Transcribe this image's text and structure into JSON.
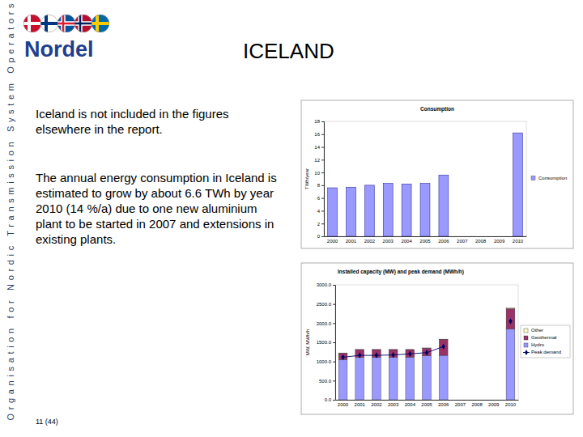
{
  "slide": {
    "side_text": "Organisation for Nordic Transmission System Operators",
    "logo": "Nordel",
    "title": "ICELAND",
    "paragraphs": [
      "Iceland is not included in the figures elsewhere in the report.",
      "The annual energy consumption in Iceland is estimated to grow by about 6.6 TWh by year 2010 (14 %/a) due to one new aluminium plant to be started in 2007 and extensions in existing plants."
    ],
    "page": "11 (44)"
  },
  "chart_data": [
    {
      "type": "bar",
      "title": "Consumption",
      "y_label": "TWh/year",
      "categories": [
        "2000",
        "2001",
        "2002",
        "2003",
        "2004",
        "2005",
        "2006",
        "2007",
        "2008",
        "2009",
        "2010"
      ],
      "series": [
        {
          "name": "Consumption",
          "color": "#9999ff",
          "values": [
            7.6,
            7.7,
            8.0,
            8.3,
            8.2,
            8.3,
            9.6,
            null,
            null,
            null,
            16.2
          ]
        }
      ],
      "ylim": [
        0,
        18
      ],
      "yticks": [
        0,
        2,
        4,
        6,
        8,
        10,
        12,
        14,
        16,
        18
      ],
      "grid": false,
      "legend": "right"
    },
    {
      "type": "bar",
      "stacked": true,
      "title": "Installed capacity (MW) and peak demand (MWh/h)",
      "y_label": "MW, MWh/h",
      "categories": [
        "2000",
        "2001",
        "2002",
        "2003",
        "2004",
        "2005",
        "2006",
        "2007",
        "2008",
        "2009",
        "2010"
      ],
      "series": [
        {
          "name": "Hydro",
          "color": "#9999ff",
          "values": [
            1050,
            1110,
            1110,
            1110,
            1110,
            1150,
            1160,
            null,
            null,
            null,
            1850
          ]
        },
        {
          "name": "Geothermal",
          "color": "#993366",
          "values": [
            170,
            200,
            200,
            200,
            200,
            200,
            420,
            null,
            null,
            null,
            530
          ]
        },
        {
          "name": "Other",
          "color": "#ffffcc",
          "values": [
            2,
            2,
            2,
            2,
            2,
            2,
            2,
            null,
            null,
            null,
            20
          ]
        },
        {
          "name": "Peak demand",
          "type": "line",
          "color": "#000066",
          "marker": "diamond",
          "values": [
            1110,
            1160,
            1160,
            1170,
            1200,
            1230,
            1390,
            null,
            null,
            null,
            2050
          ]
        }
      ],
      "ylim": [
        0,
        3000
      ],
      "yticks": [
        {
          "value": 0,
          "label": "0.0"
        },
        {
          "value": 500,
          "label": "500.0"
        },
        {
          "value": 1000,
          "label": "1000.0"
        },
        {
          "value": 1500,
          "label": "1500.0"
        },
        {
          "value": 2000,
          "label": "2000.0"
        },
        {
          "value": 2500,
          "label": "2500.0"
        },
        {
          "value": 3000,
          "label": "3000.0"
        }
      ],
      "grid": false,
      "legend": "right"
    }
  ]
}
